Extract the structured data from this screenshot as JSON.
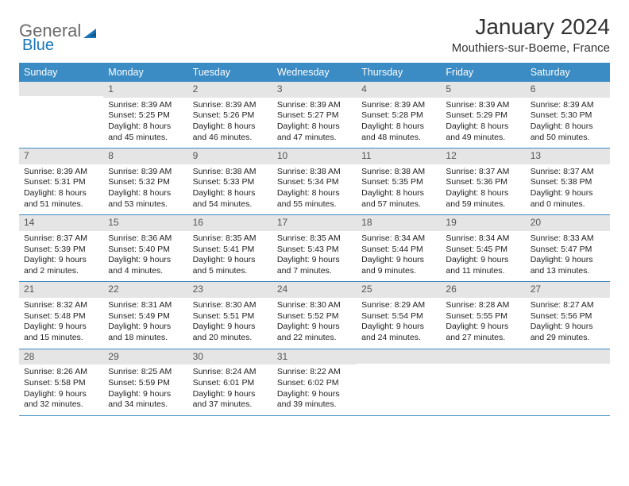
{
  "brand": {
    "name": "General",
    "sub": "Blue",
    "logo_color": "#1976b8",
    "text_color": "#6b6b6b"
  },
  "header": {
    "title": "January 2024",
    "location": "Mouthiers-sur-Boeme, France"
  },
  "colors": {
    "header_bar": "#3b8bc4",
    "daynum_bg": "#e5e5e5",
    "rule": "#3b8bc4",
    "text": "#222222"
  },
  "weekdays": [
    "Sunday",
    "Monday",
    "Tuesday",
    "Wednesday",
    "Thursday",
    "Friday",
    "Saturday"
  ],
  "weeks": [
    [
      {
        "n": "",
        "lines": []
      },
      {
        "n": "1",
        "lines": [
          "Sunrise: 8:39 AM",
          "Sunset: 5:25 PM",
          "Daylight: 8 hours and 45 minutes."
        ]
      },
      {
        "n": "2",
        "lines": [
          "Sunrise: 8:39 AM",
          "Sunset: 5:26 PM",
          "Daylight: 8 hours and 46 minutes."
        ]
      },
      {
        "n": "3",
        "lines": [
          "Sunrise: 8:39 AM",
          "Sunset: 5:27 PM",
          "Daylight: 8 hours and 47 minutes."
        ]
      },
      {
        "n": "4",
        "lines": [
          "Sunrise: 8:39 AM",
          "Sunset: 5:28 PM",
          "Daylight: 8 hours and 48 minutes."
        ]
      },
      {
        "n": "5",
        "lines": [
          "Sunrise: 8:39 AM",
          "Sunset: 5:29 PM",
          "Daylight: 8 hours and 49 minutes."
        ]
      },
      {
        "n": "6",
        "lines": [
          "Sunrise: 8:39 AM",
          "Sunset: 5:30 PM",
          "Daylight: 8 hours and 50 minutes."
        ]
      }
    ],
    [
      {
        "n": "7",
        "lines": [
          "Sunrise: 8:39 AM",
          "Sunset: 5:31 PM",
          "Daylight: 8 hours and 51 minutes."
        ]
      },
      {
        "n": "8",
        "lines": [
          "Sunrise: 8:39 AM",
          "Sunset: 5:32 PM",
          "Daylight: 8 hours and 53 minutes."
        ]
      },
      {
        "n": "9",
        "lines": [
          "Sunrise: 8:38 AM",
          "Sunset: 5:33 PM",
          "Daylight: 8 hours and 54 minutes."
        ]
      },
      {
        "n": "10",
        "lines": [
          "Sunrise: 8:38 AM",
          "Sunset: 5:34 PM",
          "Daylight: 8 hours and 55 minutes."
        ]
      },
      {
        "n": "11",
        "lines": [
          "Sunrise: 8:38 AM",
          "Sunset: 5:35 PM",
          "Daylight: 8 hours and 57 minutes."
        ]
      },
      {
        "n": "12",
        "lines": [
          "Sunrise: 8:37 AM",
          "Sunset: 5:36 PM",
          "Daylight: 8 hours and 59 minutes."
        ]
      },
      {
        "n": "13",
        "lines": [
          "Sunrise: 8:37 AM",
          "Sunset: 5:38 PM",
          "Daylight: 9 hours and 0 minutes."
        ]
      }
    ],
    [
      {
        "n": "14",
        "lines": [
          "Sunrise: 8:37 AM",
          "Sunset: 5:39 PM",
          "Daylight: 9 hours and 2 minutes."
        ]
      },
      {
        "n": "15",
        "lines": [
          "Sunrise: 8:36 AM",
          "Sunset: 5:40 PM",
          "Daylight: 9 hours and 4 minutes."
        ]
      },
      {
        "n": "16",
        "lines": [
          "Sunrise: 8:35 AM",
          "Sunset: 5:41 PM",
          "Daylight: 9 hours and 5 minutes."
        ]
      },
      {
        "n": "17",
        "lines": [
          "Sunrise: 8:35 AM",
          "Sunset: 5:43 PM",
          "Daylight: 9 hours and 7 minutes."
        ]
      },
      {
        "n": "18",
        "lines": [
          "Sunrise: 8:34 AM",
          "Sunset: 5:44 PM",
          "Daylight: 9 hours and 9 minutes."
        ]
      },
      {
        "n": "19",
        "lines": [
          "Sunrise: 8:34 AM",
          "Sunset: 5:45 PM",
          "Daylight: 9 hours and 11 minutes."
        ]
      },
      {
        "n": "20",
        "lines": [
          "Sunrise: 8:33 AM",
          "Sunset: 5:47 PM",
          "Daylight: 9 hours and 13 minutes."
        ]
      }
    ],
    [
      {
        "n": "21",
        "lines": [
          "Sunrise: 8:32 AM",
          "Sunset: 5:48 PM",
          "Daylight: 9 hours and 15 minutes."
        ]
      },
      {
        "n": "22",
        "lines": [
          "Sunrise: 8:31 AM",
          "Sunset: 5:49 PM",
          "Daylight: 9 hours and 18 minutes."
        ]
      },
      {
        "n": "23",
        "lines": [
          "Sunrise: 8:30 AM",
          "Sunset: 5:51 PM",
          "Daylight: 9 hours and 20 minutes."
        ]
      },
      {
        "n": "24",
        "lines": [
          "Sunrise: 8:30 AM",
          "Sunset: 5:52 PM",
          "Daylight: 9 hours and 22 minutes."
        ]
      },
      {
        "n": "25",
        "lines": [
          "Sunrise: 8:29 AM",
          "Sunset: 5:54 PM",
          "Daylight: 9 hours and 24 minutes."
        ]
      },
      {
        "n": "26",
        "lines": [
          "Sunrise: 8:28 AM",
          "Sunset: 5:55 PM",
          "Daylight: 9 hours and 27 minutes."
        ]
      },
      {
        "n": "27",
        "lines": [
          "Sunrise: 8:27 AM",
          "Sunset: 5:56 PM",
          "Daylight: 9 hours and 29 minutes."
        ]
      }
    ],
    [
      {
        "n": "28",
        "lines": [
          "Sunrise: 8:26 AM",
          "Sunset: 5:58 PM",
          "Daylight: 9 hours and 32 minutes."
        ]
      },
      {
        "n": "29",
        "lines": [
          "Sunrise: 8:25 AM",
          "Sunset: 5:59 PM",
          "Daylight: 9 hours and 34 minutes."
        ]
      },
      {
        "n": "30",
        "lines": [
          "Sunrise: 8:24 AM",
          "Sunset: 6:01 PM",
          "Daylight: 9 hours and 37 minutes."
        ]
      },
      {
        "n": "31",
        "lines": [
          "Sunrise: 8:22 AM",
          "Sunset: 6:02 PM",
          "Daylight: 9 hours and 39 minutes."
        ]
      },
      {
        "n": "",
        "lines": []
      },
      {
        "n": "",
        "lines": []
      },
      {
        "n": "",
        "lines": []
      }
    ]
  ]
}
